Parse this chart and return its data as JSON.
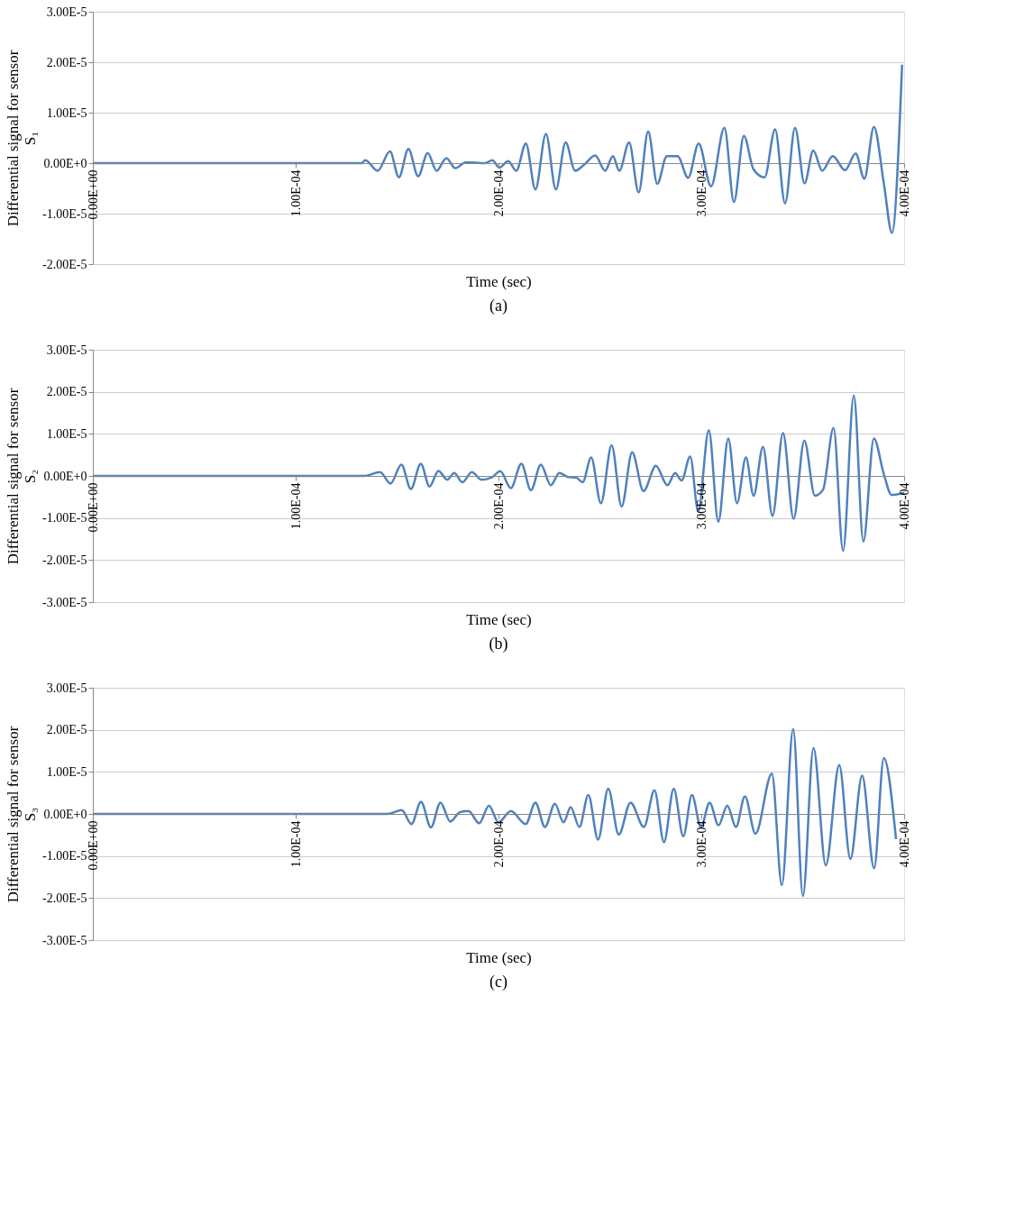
{
  "chart_data": [
    {
      "type": "line",
      "xlabel": "Time (sec)",
      "ylabel": "Differential signal for sensor S₁",
      "annotations": [
        "(a)"
      ],
      "grid": "y",
      "line_style": "solid",
      "marker": "none",
      "xlim": [
        0,
        0.0004
      ],
      "ylim": [
        -2e-05,
        3e-05
      ],
      "xticks": [
        {
          "value": 0,
          "label": "0.00E+00"
        },
        {
          "value": 0.0001,
          "label": "1.00E-04"
        },
        {
          "value": 0.0002,
          "label": "2.00E-04"
        },
        {
          "value": 0.0003,
          "label": "3.00E-04"
        },
        {
          "value": 0.0004,
          "label": "4.00E-04"
        }
      ],
      "yticks": [
        {
          "value": -2e-05,
          "label": "-2.00E-5"
        },
        {
          "value": -1e-05,
          "label": "-1.00E-5"
        },
        {
          "value": 0,
          "label": "0.00E+0"
        },
        {
          "value": 1e-05,
          "label": "1.00E-5"
        },
        {
          "value": 2e-05,
          "label": "2.00E-5"
        },
        {
          "value": 3e-05,
          "label": "3.00E-5"
        }
      ],
      "x": [
        0,
        0.0001326,
        0.0001343,
        0.0001404,
        0.0001465,
        0.0001509,
        0.0001556,
        0.0001604,
        0.0001651,
        0.0001695,
        0.0001743,
        0.0001787,
        0.0001839,
        0.0001935,
        0.000197,
        0.0002004,
        0.0002048,
        0.0002088,
        0.0002135,
        0.0002182,
        0.0002234,
        0.0002283,
        0.0002331,
        0.0002378,
        0.0002422,
        0.0002477,
        0.0002526,
        0.0002564,
        0.0002596,
        0.0002644,
        0.0002691,
        0.0002738,
        0.0002783,
        0.000283,
        0.0002883,
        0.0002935,
        0.0002987,
        0.0003048,
        0.0003114,
        0.0003161,
        0.000321,
        0.0003257,
        0.0003312,
        0.0003364,
        0.0003413,
        0.0003462,
        0.0003509,
        0.0003552,
        0.0003596,
        0.0003648,
        0.0003709,
        0.0003761,
        0.0003804,
        0.0003851,
        0.00039,
        0.000394,
        0.000399
      ],
      "series": [
        {
          "color": "#4f81bd",
          "values": [
            0,
            0,
            6e-07,
            -1.5e-06,
            2.3e-06,
            -2.8e-06,
            2.8e-06,
            -2.6e-06,
            2e-06,
            -1.5e-06,
            1e-06,
            -1e-06,
            2e-07,
            0,
            6e-07,
            -9e-07,
            4e-07,
            -1.5e-06,
            3.9e-06,
            -5.2e-06,
            5.8e-06,
            -5.2e-06,
            4.1e-06,
            -1.5e-06,
            -3e-07,
            1.5e-06,
            -1.5e-06,
            1.4e-06,
            -1.5e-06,
            4.1e-06,
            -5.8e-06,
            6.3e-06,
            -4.1e-06,
            1.4e-06,
            1.4e-06,
            -2.9e-06,
            3.9e-06,
            -4.6e-06,
            7e-06,
            -7.7e-06,
            5.4e-06,
            -1.2e-06,
            -2.8e-06,
            6.7e-06,
            -8e-06,
            7e-06,
            -4e-06,
            2.5e-06,
            -1.5e-06,
            1.4e-06,
            -1.4e-06,
            1.9e-06,
            -3.1e-06,
            7.2e-06,
            -4e-06,
            -1.38e-05,
            1.95e-05
          ]
        }
      ]
    },
    {
      "type": "line",
      "xlabel": "Time (sec)",
      "ylabel": "Differential signal for sensor S₂",
      "annotations": [
        "(b)"
      ],
      "grid": "y",
      "line_style": "solid",
      "marker": "none",
      "xlim": [
        0,
        0.0004
      ],
      "ylim": [
        -3e-05,
        3e-05
      ],
      "xticks": [
        {
          "value": 0,
          "label": "0.00E+00"
        },
        {
          "value": 0.0001,
          "label": "1.00E-04"
        },
        {
          "value": 0.0002,
          "label": "2.00E-04"
        },
        {
          "value": 0.0003,
          "label": "3.00E-04"
        },
        {
          "value": 0.0004,
          "label": "4.00E-04"
        }
      ],
      "yticks": [
        {
          "value": -3e-05,
          "label": "-3.00E-5"
        },
        {
          "value": -2e-05,
          "label": "-2.00E-5"
        },
        {
          "value": -1e-05,
          "label": "-1.00E-5"
        },
        {
          "value": 0,
          "label": "0.00E+0"
        },
        {
          "value": 1e-05,
          "label": "1.00E-5"
        },
        {
          "value": 2e-05,
          "label": "2.00E-5"
        },
        {
          "value": 3e-05,
          "label": "3.00E-5"
        }
      ],
      "x": [
        0,
        0.0001338,
        0.0001416,
        0.0001468,
        0.0001521,
        0.0001568,
        0.0001617,
        0.000166,
        0.0001704,
        0.0001747,
        0.0001782,
        0.0001822,
        0.0001869,
        0.0001916,
        0.0001965,
        0.0002009,
        0.0002061,
        0.0002113,
        0.000216,
        0.0002209,
        0.0002258,
        0.00023,
        0.000234,
        0.0002383,
        0.0002415,
        0.0002457,
        0.0002505,
        0.0002558,
        0.0002607,
        0.0002659,
        0.0002715,
        0.0002776,
        0.0002833,
        0.0002871,
        0.0002903,
        0.0002945,
        0.0002985,
        0.0003037,
        0.0003084,
        0.0003133,
        0.0003176,
        0.000322,
        0.0003258,
        0.0003304,
        0.0003351,
        0.0003403,
        0.0003455,
        0.0003508,
        0.000356,
        0.00036,
        0.0003652,
        0.0003699,
        0.0003752,
        0.0003799,
        0.0003851,
        0.00039,
        0.0003938,
        0.0004
      ],
      "series": [
        {
          "color": "#4f81bd",
          "values": [
            0,
            0,
            9e-07,
            -1.8e-06,
            2.7e-06,
            -3.1e-06,
            2.9e-06,
            -2.5e-06,
            1.2e-06,
            -9e-07,
            7e-07,
            -1.5e-06,
            9e-07,
            -9e-07,
            -4e-07,
            1.1e-06,
            -2.9e-06,
            2.9e-06,
            -3.4e-06,
            2.7e-06,
            -2.2e-06,
            7e-07,
            -2e-07,
            -4e-07,
            -1.5e-06,
            4.4e-06,
            -6.5e-06,
            7.3e-06,
            -7.3e-06,
            5.6e-06,
            -3.6e-06,
            2.4e-06,
            -2.2e-06,
            7e-07,
            -1.1e-06,
            4.6e-06,
            -8.4e-06,
            1.09e-05,
            -1.09e-05,
            8.9e-06,
            -6.5e-06,
            4.4e-06,
            -4.7e-06,
            6.9e-06,
            -9.5e-06,
            1.02e-05,
            -1.02e-05,
            8.4e-06,
            -4.7e-06,
            -3.3e-06,
            1.14e-05,
            -1.78e-05,
            1.91e-05,
            -1.56e-05,
            8.9e-06,
            4e-07,
            -4.5e-06,
            -4e-06
          ]
        }
      ]
    },
    {
      "type": "line",
      "xlabel": "Time (sec)",
      "ylabel": "Differential signal for sensor S₃",
      "annotations": [
        "(c)"
      ],
      "grid": "y",
      "line_style": "solid",
      "marker": "none",
      "xlim": [
        0,
        0.0004
      ],
      "ylim": [
        -3e-05,
        3e-05
      ],
      "xticks": [
        {
          "value": 0,
          "label": "0.00E+00"
        },
        {
          "value": 0.0001,
          "label": "1.00E-04"
        },
        {
          "value": 0.0002,
          "label": "2.00E-04"
        },
        {
          "value": 0.0003,
          "label": "3.00E-04"
        },
        {
          "value": 0.0004,
          "label": "4.00E-04"
        }
      ],
      "yticks": [
        {
          "value": -3e-05,
          "label": "-3.00E-5"
        },
        {
          "value": -2e-05,
          "label": "-2.00E-5"
        },
        {
          "value": -1e-05,
          "label": "-1.00E-5"
        },
        {
          "value": 0,
          "label": "0.00E+0"
        },
        {
          "value": 1e-05,
          "label": "1.00E-5"
        },
        {
          "value": 2e-05,
          "label": "2.00E-5"
        },
        {
          "value": 3e-05,
          "label": "3.00E-5"
        }
      ],
      "x": [
        0,
        0.0001453,
        0.0001523,
        0.0001571,
        0.0001618,
        0.0001667,
        0.0001714,
        0.0001762,
        0.0001809,
        0.0001852,
        0.0001905,
        0.0001953,
        0.0002,
        0.0002061,
        0.0002134,
        0.0002182,
        0.0002229,
        0.0002278,
        0.0002321,
        0.0002356,
        0.0002399,
        0.0002443,
        0.0002491,
        0.0002541,
        0.0002593,
        0.0002651,
        0.0002717,
        0.0002769,
        0.0002816,
        0.0002864,
        0.0002911,
        0.0002954,
        0.0002998,
        0.0003041,
        0.0003085,
        0.0003128,
        0.0003171,
        0.0003215,
        0.0003267,
        0.0003348,
        0.0003397,
        0.0003453,
        0.0003501,
        0.0003553,
        0.0003614,
        0.000368,
        0.0003735,
        0.0003793,
        0.0003852,
        0.00039,
        0.000396
      ],
      "series": [
        {
          "color": "#4f81bd",
          "values": [
            0,
            0,
            9e-07,
            -2.4e-06,
            2.9e-06,
            -3.2e-06,
            2.7e-06,
            -1.8e-06,
            4e-07,
            7e-07,
            -2.2e-06,
            2e-06,
            -2e-06,
            7e-07,
            -2.4e-06,
            2.7e-06,
            -3.1e-06,
            2.4e-06,
            -2e-06,
            1.6e-06,
            -3.1e-06,
            4.5e-06,
            -6.1e-06,
            6e-06,
            -4.9e-06,
            2.7e-06,
            -3.1e-06,
            5.6e-06,
            -6.7e-06,
            6e-06,
            -5.3e-06,
            4.5e-06,
            -3.1e-06,
            2.7e-06,
            -2.7e-06,
            2e-06,
            -3.1e-06,
            4.2e-06,
            -4.7e-06,
            9.6e-06,
            -1.69e-05,
            2.02e-05,
            -1.95e-05,
            1.57e-05,
            -1.22e-05,
            1.16e-05,
            -1.07e-05,
            9.1e-06,
            -1.29e-05,
            1.33e-05,
            -6e-06
          ]
        }
      ]
    }
  ]
}
